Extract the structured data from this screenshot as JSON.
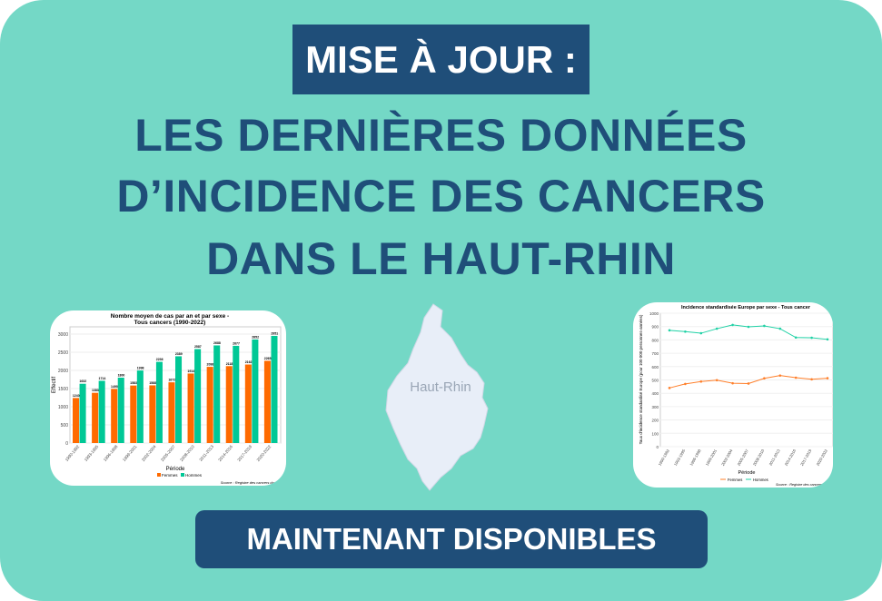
{
  "header": {
    "badge": "MISE À JOUR :"
  },
  "headline": [
    "LES DERNIÈRES DONNÉES",
    "D’INCIDENCE DES CANCERS",
    "DANS LE HAUT-RHIN"
  ],
  "map": {
    "label": "Haut-Rhin"
  },
  "cta": {
    "label": "MAINTENANT DISPONIBLES"
  },
  "colors": {
    "background": "#74d8c6",
    "navy": "#1f4e79",
    "femmes": "#ff6a00",
    "hommes": "#00c896",
    "map_fill": "#e8eef8"
  },
  "chart_data": [
    {
      "type": "bar",
      "title": "Nombre moyen de cas par an et par sexe -",
      "subtitle": "Tous cancers (1990-2022)",
      "xlabel": "Période",
      "ylabel": "Effectif",
      "ylim": [
        0,
        3200
      ],
      "yticks": [
        0,
        500,
        1000,
        1500,
        2000,
        2500,
        3000
      ],
      "grid": true,
      "legend": "bottom",
      "source": "Source : Registre des cancers du Ht",
      "categories": [
        "1990-1992",
        "1993-1995",
        "1996-1998",
        "1999-2001",
        "2002-2004",
        "2005-2007",
        "2008-2010",
        "2011-2013",
        "2014-2016",
        "2017-2019",
        "2020-2022"
      ],
      "series": [
        {
          "name": "Femmes",
          "color": "#ff6a00",
          "values": [
            1240,
            1383,
            1490,
            1583,
            1588,
            1672,
            1914,
            2098,
            2118,
            2162,
            2265
          ]
        },
        {
          "name": "Hommes",
          "color": "#00c896",
          "values": [
            1632,
            1714,
            1800,
            1998,
            2236,
            2389,
            2587,
            2688,
            2677,
            2852,
            2951
          ]
        }
      ]
    },
    {
      "type": "line",
      "title": "Incidence standardisée Europe par sexe - Tous cancer",
      "xlabel": "Période",
      "ylabel": "Taux d'incidence standardisé Europe (pour 100 000 personnes-années)",
      "ylim": [
        0,
        1000
      ],
      "yticks": [
        0,
        100,
        200,
        300,
        400,
        500,
        600,
        700,
        800,
        900,
        1000
      ],
      "grid": true,
      "legend": "bottom",
      "source": "Source : Registre des cancers du Ht",
      "categories": [
        "1990-1992",
        "1993-1995",
        "1996-1998",
        "1999-2001",
        "2002-2004",
        "2005-2007",
        "2008-2010",
        "2011-2013",
        "2014-2016",
        "2017-2019",
        "2020-2022"
      ],
      "series": [
        {
          "name": "Femmes",
          "color": "#ff7f2a",
          "values": [
            440,
            470,
            488,
            498,
            475,
            473,
            512,
            533,
            517,
            505,
            513
          ]
        },
        {
          "name": "Hommes",
          "color": "#1fd1a5",
          "values": [
            872,
            862,
            850,
            884,
            912,
            898,
            905,
            884,
            818,
            816,
            804
          ]
        }
      ]
    }
  ]
}
